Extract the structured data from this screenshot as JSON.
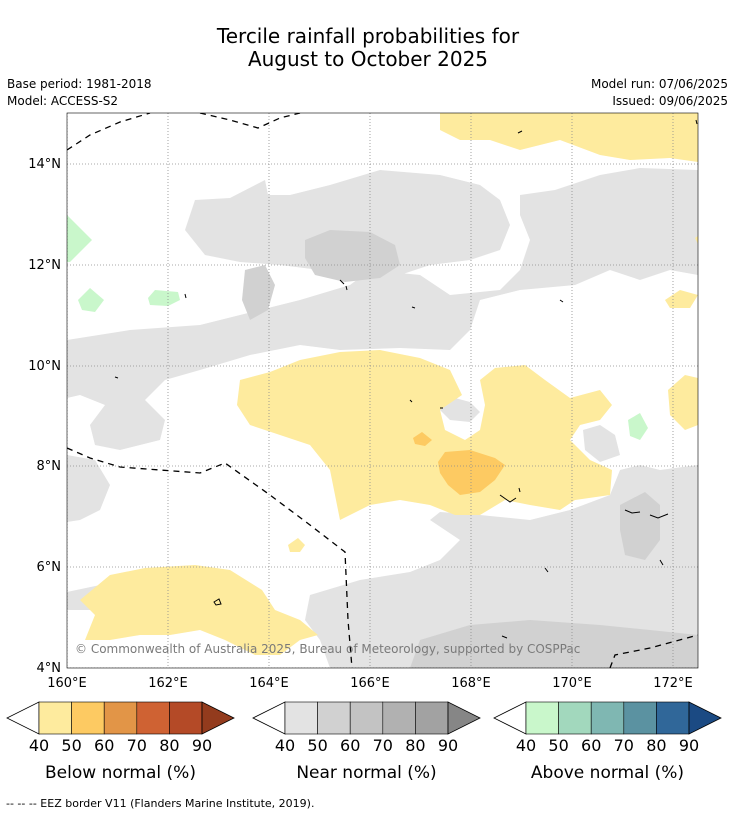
{
  "title_line1": "Tercile rainfall probabilities for",
  "title_line2": "August to October 2025",
  "base_period": "Base period: 1981-2018",
  "model": "Model: ACCESS-S2",
  "model_run": "Model run: 07/06/2025",
  "issued": "Issued: 09/06/2025",
  "x_ticks": [
    "160°E",
    "162°E",
    "164°E",
    "166°E",
    "168°E",
    "170°E",
    "172°E"
  ],
  "y_ticks": [
    "14°N",
    "12°N",
    "10°N",
    "8°N",
    "6°N",
    "4°N"
  ],
  "copyright": "© Commonwealth of Australia 2025, Bureau of Meteorology, supported by COSPPac",
  "colorbars": [
    {
      "title": "Below normal (%)",
      "labels": [
        "40",
        "50",
        "60",
        "70",
        "80",
        "90"
      ],
      "colors": [
        "#ffffff",
        "#feeb9e",
        "#fdca62",
        "#e29547",
        "#cf6233",
        "#b44a27",
        "#933b1d"
      ]
    },
    {
      "title": "Near normal (%)",
      "labels": [
        "40",
        "50",
        "60",
        "70",
        "80",
        "90"
      ],
      "colors": [
        "#ffffff",
        "#e3e3e3",
        "#d1d1d1",
        "#c3c3c3",
        "#b1b1b1",
        "#a2a2a2",
        "#868686"
      ]
    },
    {
      "title": "Above normal (%)",
      "labels": [
        "40",
        "50",
        "60",
        "70",
        "80",
        "90"
      ],
      "colors": [
        "#ffffff",
        "#c9f7cb",
        "#a2d8bd",
        "#7fb7b2",
        "#5b92a1",
        "#306799",
        "#1b4a83"
      ]
    }
  ],
  "footnote": "-- -- -- EEZ border V11 (Flanders Marine Institute, 2019)."
}
